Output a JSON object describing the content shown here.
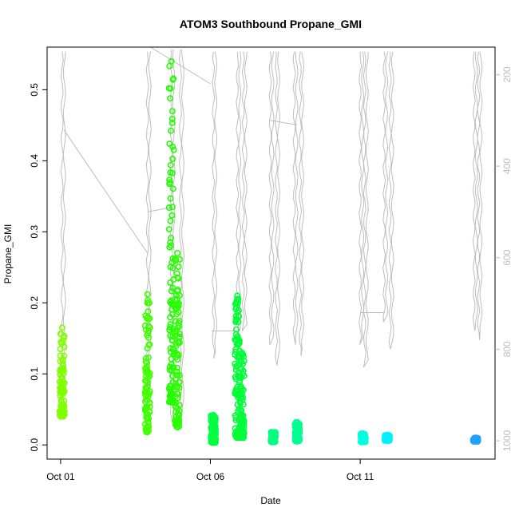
{
  "chart_data": {
    "type": "scatter",
    "title": "ATOM3 Southbound Propane_GMI",
    "xlabel": "Date",
    "ylabel": "Propane_GMI",
    "x_ticks": [
      {
        "day": 1,
        "label": "Oct 01"
      },
      {
        "day": 6,
        "label": "Oct 06"
      },
      {
        "day": 11,
        "label": "Oct 11"
      }
    ],
    "xlim_days": [
      0.55,
      15.5
    ],
    "ylim": [
      -0.02,
      0.56
    ],
    "y_ticks": [
      0.0,
      0.1,
      0.2,
      0.3,
      0.4,
      0.5
    ],
    "y2_ticks": [
      200,
      400,
      600,
      800,
      1000
    ],
    "y2lim": [
      1040,
      140
    ],
    "y2_color": "#bebebe",
    "point_series": [
      {
        "day": 1.05,
        "min": 0.04,
        "max": 0.165,
        "color": "#80ff00"
      },
      {
        "day": 3.9,
        "min": 0.018,
        "max": 0.212,
        "color": "#40ff00"
      },
      {
        "day": 4.7,
        "min": 0.06,
        "max": 0.54,
        "color": "#20ff00"
      },
      {
        "day": 4.9,
        "min": 0.025,
        "max": 0.27,
        "color": "#2aff00"
      },
      {
        "day": 6.1,
        "min": 0.003,
        "max": 0.042,
        "color": "#00ff40"
      },
      {
        "day": 6.9,
        "min": 0.01,
        "max": 0.21,
        "color": "#00ff30"
      },
      {
        "day": 7.05,
        "min": 0.01,
        "max": 0.13,
        "color": "#00ff38"
      },
      {
        "day": 8.1,
        "min": 0.004,
        "max": 0.018,
        "color": "#00ff80"
      },
      {
        "day": 8.9,
        "min": 0.005,
        "max": 0.032,
        "color": "#00ff90"
      },
      {
        "day": 11.1,
        "min": 0.004,
        "max": 0.016,
        "color": "#00ffe0"
      },
      {
        "day": 11.9,
        "min": 0.006,
        "max": 0.014,
        "color": "#00f0ff"
      },
      {
        "day": 14.85,
        "min": 0.005,
        "max": 0.01,
        "color": "#20a0ff"
      }
    ],
    "pressure_profiles": [
      {
        "day": 1.05,
        "top": 150,
        "bottom": 900
      },
      {
        "day": 3.9,
        "top": 150,
        "bottom": 905
      },
      {
        "day": 4.7,
        "top": 145,
        "bottom": 960
      },
      {
        "day": 5.0,
        "top": 145,
        "bottom": 970
      },
      {
        "day": 6.1,
        "top": 150,
        "bottom": 820
      },
      {
        "day": 6.9,
        "top": 150,
        "bottom": 770
      },
      {
        "day": 7.1,
        "top": 150,
        "bottom": 760
      },
      {
        "day": 8.0,
        "top": 150,
        "bottom": 790
      },
      {
        "day": 8.2,
        "top": 150,
        "bottom": 835
      },
      {
        "day": 8.8,
        "top": 150,
        "bottom": 790
      },
      {
        "day": 9.0,
        "top": 150,
        "bottom": 815
      },
      {
        "day": 11.0,
        "top": 150,
        "bottom": 790
      },
      {
        "day": 11.15,
        "top": 150,
        "bottom": 840
      },
      {
        "day": 11.8,
        "top": 150,
        "bottom": 740
      },
      {
        "day": 12.0,
        "top": 150,
        "bottom": 800
      },
      {
        "day": 14.8,
        "top": 150,
        "bottom": 760
      },
      {
        "day": 14.95,
        "top": 150,
        "bottom": 780
      }
    ],
    "pressure_transits": [
      {
        "x1": 1.1,
        "p1": 320,
        "x2": 3.9,
        "p2": 590
      },
      {
        "x1": 3.9,
        "p1": 500,
        "x2": 4.7,
        "p2": 490
      },
      {
        "x1": 4.0,
        "p1": 140,
        "x2": 6.0,
        "p2": 220
      },
      {
        "x1": 6.05,
        "p1": 760,
        "x2": 6.9,
        "p2": 760
      },
      {
        "x1": 8.0,
        "p1": 300,
        "x2": 8.9,
        "p2": 310
      },
      {
        "x1": 11.0,
        "p1": 720,
        "x2": 11.8,
        "p2": 720
      }
    ]
  }
}
